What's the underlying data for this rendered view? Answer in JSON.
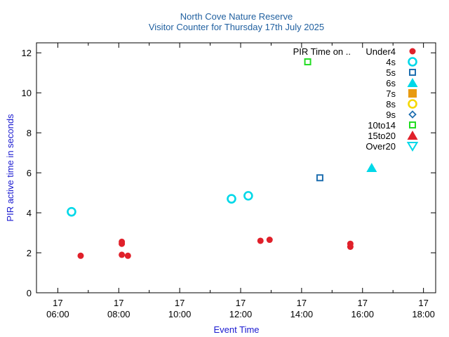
{
  "chart_data": {
    "type": "scatter",
    "title": "North Cove Nature Reserve",
    "subtitle": "Visitor Counter for Thursday 17th July 2025",
    "xlabel": "Event Time",
    "ylabel": "PIR active time in seconds",
    "xlim": [
      5.3,
      18.4
    ],
    "ylim": [
      0,
      12.5
    ],
    "x_ticks": [
      {
        "value": 6,
        "day": "17",
        "time": "06:00"
      },
      {
        "value": 8,
        "day": "17",
        "time": "08:00"
      },
      {
        "value": 10,
        "day": "17",
        "time": "10:00"
      },
      {
        "value": 12,
        "day": "17",
        "time": "12:00"
      },
      {
        "value": 14,
        "day": "17",
        "time": "14:00"
      },
      {
        "value": 16,
        "day": "17",
        "time": "16:00"
      },
      {
        "value": 18,
        "day": "17",
        "time": "18:00"
      }
    ],
    "y_ticks": [
      0,
      2,
      4,
      6,
      8,
      10,
      12
    ],
    "legend_title": "PIR Time on ..",
    "legend_position": "top-right",
    "series": [
      {
        "name": "Under4",
        "marker": "circle-filled",
        "color": "#e0202a",
        "points": [
          [
            6.75,
            1.85
          ],
          [
            8.1,
            2.55
          ],
          [
            8.1,
            2.45
          ],
          [
            8.1,
            1.9
          ],
          [
            8.3,
            1.85
          ],
          [
            12.65,
            2.6
          ],
          [
            12.95,
            2.65
          ],
          [
            15.6,
            2.45
          ],
          [
            15.6,
            2.3
          ]
        ]
      },
      {
        "name": "4s",
        "marker": "circle-open",
        "color": "#00d8e8",
        "points": [
          [
            6.45,
            4.05
          ],
          [
            11.7,
            4.7
          ],
          [
            12.25,
            4.85
          ]
        ]
      },
      {
        "name": "5s",
        "marker": "square-open",
        "color": "#1f6fb0",
        "points": [
          [
            14.6,
            5.75
          ]
        ]
      },
      {
        "name": "6s",
        "marker": "triangle-filled",
        "color": "#00d8e8",
        "points": [
          [
            16.3,
            6.25
          ]
        ]
      },
      {
        "name": "7s",
        "marker": "square-filled",
        "color": "#e89a10",
        "points": []
      },
      {
        "name": "8s",
        "marker": "circle-open",
        "color": "#f5d800",
        "points": []
      },
      {
        "name": "9s",
        "marker": "diamond-open",
        "color": "#1f6fb0",
        "points": []
      },
      {
        "name": "10to14",
        "marker": "square-open",
        "color": "#22dd22",
        "points": [
          [
            14.2,
            11.55
          ]
        ]
      },
      {
        "name": "15to20",
        "marker": "triangle-filled",
        "color": "#e0202a",
        "points": []
      },
      {
        "name": "Over20",
        "marker": "triangle-down-open",
        "color": "#00d8e8",
        "points": []
      }
    ]
  }
}
